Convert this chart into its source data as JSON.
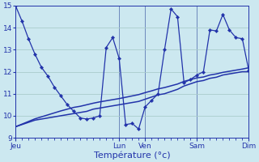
{
  "background_color": "#cce8f0",
  "grid_color": "#aacccc",
  "line_color": "#2233aa",
  "xlabel": "Température (°c)",
  "xlabel_fontsize": 8,
  "ylim": [
    9,
    15
  ],
  "yticks": [
    9,
    10,
    11,
    12,
    13,
    14,
    15
  ],
  "n_points": 37,
  "day_labels": [
    "Jeu",
    "Lun",
    "Ven",
    "Sam",
    "Dim"
  ],
  "day_x": [
    0,
    16,
    20,
    28,
    36
  ],
  "vline_x": [
    0,
    16,
    20,
    28,
    36
  ],
  "line1_y": [
    15.0,
    14.3,
    13.5,
    12.8,
    12.2,
    11.8,
    11.3,
    10.9,
    10.5,
    10.2,
    9.9,
    9.85,
    9.9,
    10.0,
    13.1,
    13.55,
    12.6,
    9.6,
    9.65,
    9.4,
    10.4,
    10.7,
    11.0,
    13.0,
    14.85,
    14.5,
    11.5,
    11.65,
    11.85,
    12.0,
    13.9,
    13.85,
    14.6,
    13.9,
    13.55,
    13.5,
    12.05
  ],
  "line2_y": [
    9.5,
    9.6,
    9.7,
    9.8,
    9.85,
    9.9,
    9.95,
    10.0,
    10.05,
    10.1,
    10.15,
    10.2,
    10.3,
    10.35,
    10.4,
    10.45,
    10.5,
    10.55,
    10.6,
    10.65,
    10.75,
    10.85,
    10.95,
    11.0,
    11.1,
    11.2,
    11.35,
    11.45,
    11.55,
    11.6,
    11.7,
    11.75,
    11.85,
    11.9,
    11.95,
    12.0,
    12.0
  ],
  "line3_y": [
    9.5,
    9.62,
    9.74,
    9.86,
    9.95,
    10.04,
    10.13,
    10.22,
    10.3,
    10.38,
    10.43,
    10.5,
    10.57,
    10.63,
    10.68,
    10.73,
    10.78,
    10.84,
    10.9,
    10.96,
    11.05,
    11.13,
    11.22,
    11.28,
    11.36,
    11.44,
    11.56,
    11.64,
    11.72,
    11.76,
    11.85,
    11.9,
    11.97,
    12.02,
    12.07,
    12.12,
    12.18
  ],
  "n_minor_ticks": 37,
  "figsize": [
    3.2,
    2.0
  ],
  "dpi": 100
}
